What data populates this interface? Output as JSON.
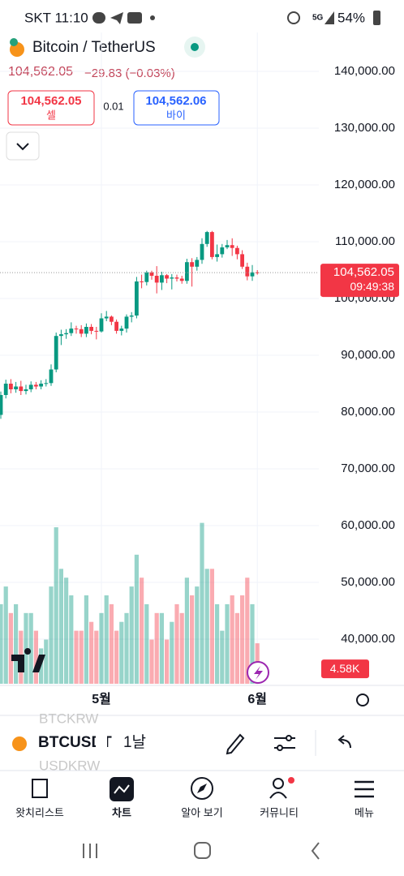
{
  "status_bar": {
    "carrier_time": "SKT 11:10",
    "network": "5G",
    "battery": "54%"
  },
  "header": {
    "symbol_name": "Bitcoin / TetherUS",
    "price": "104,562.05",
    "change": "−29.83 (−0.03%)",
    "sell": {
      "price": "104,562.05",
      "label": "셀"
    },
    "spread": "0.01",
    "buy": {
      "price": "104,562.06",
      "label": "바이"
    }
  },
  "chart_data": {
    "type": "candlestick",
    "categories": [
      null,
      null,
      null,
      null,
      null,
      null,
      null,
      null,
      null,
      null,
      null,
      null,
      null,
      null,
      null,
      null,
      null,
      null,
      null,
      null,
      "5월",
      null,
      null,
      null,
      null,
      null,
      null,
      null,
      null,
      null,
      null,
      null,
      null,
      null,
      null,
      null,
      null,
      null,
      null,
      null,
      null,
      null,
      null,
      null,
      null,
      null,
      null,
      null,
      null,
      null,
      null,
      "6월"
    ],
    "candles": [
      [
        79500,
        83600,
        78800,
        83000
      ],
      [
        83000,
        85700,
        82400,
        85000
      ],
      [
        85000,
        85800,
        83300,
        84000
      ],
      [
        84000,
        85300,
        83400,
        84500
      ],
      [
        84500,
        85500,
        83000,
        83700
      ],
      [
        83700,
        84800,
        83100,
        84000
      ],
      [
        84000,
        85400,
        83500,
        84800
      ],
      [
        84800,
        85300,
        84000,
        84500
      ],
      [
        84500,
        85600,
        84000,
        85000
      ],
      [
        85000,
        85800,
        84500,
        85100
      ],
      [
        85100,
        88400,
        84600,
        87500
      ],
      [
        87500,
        94000,
        87000,
        93400
      ],
      [
        93400,
        94500,
        91800,
        93700
      ],
      [
        93700,
        94600,
        92900,
        93900
      ],
      [
        93900,
        95800,
        93400,
        94700
      ],
      [
        94700,
        95200,
        93800,
        94600
      ],
      [
        94600,
        95300,
        93200,
        93800
      ],
      [
        93800,
        95600,
        93200,
        95000
      ],
      [
        95000,
        95500,
        93700,
        94300
      ],
      [
        94300,
        95000,
        92800,
        94200
      ],
      [
        94200,
        97400,
        94000,
        96500
      ],
      [
        96500,
        97800,
        96000,
        96800
      ],
      [
        96800,
        97000,
        95300,
        95900
      ],
      [
        95900,
        96300,
        93800,
        94300
      ],
      [
        94300,
        95200,
        93500,
        94700
      ],
      [
        94700,
        97200,
        94000,
        96800
      ],
      [
        96800,
        97600,
        95800,
        97000
      ],
      [
        97000,
        103800,
        96500,
        103000
      ],
      [
        103000,
        104200,
        101800,
        102900
      ],
      [
        102900,
        104900,
        102300,
        104600
      ],
      [
        104600,
        104900,
        103300,
        104000
      ],
      [
        104000,
        105700,
        100900,
        102800
      ],
      [
        102800,
        104700,
        101500,
        104100
      ],
      [
        104100,
        104300,
        102700,
        103500
      ],
      [
        103500,
        104300,
        101600,
        103700
      ],
      [
        103700,
        104200,
        103000,
        103500
      ],
      [
        103500,
        104000,
        102600,
        103100
      ],
      [
        103100,
        107000,
        102600,
        106400
      ],
      [
        106400,
        107100,
        102100,
        105600
      ],
      [
        105600,
        107300,
        104900,
        106800
      ],
      [
        106800,
        110600,
        106100,
        109600
      ],
      [
        109600,
        111900,
        109100,
        111700
      ],
      [
        111700,
        111900,
        106900,
        107300
      ],
      [
        107300,
        109500,
        106500,
        107800
      ],
      [
        107800,
        109600,
        107200,
        109000
      ],
      [
        109000,
        110300,
        108700,
        109400
      ],
      [
        109400,
        110600,
        107500,
        108900
      ],
      [
        108900,
        109300,
        106900,
        107800
      ],
      [
        107800,
        108500,
        105200,
        105600
      ],
      [
        105600,
        106300,
        103200,
        103900
      ],
      [
        103900,
        105900,
        103100,
        104600
      ],
      [
        104600,
        105000,
        104200,
        104562.05
      ]
    ],
    "volumes": [
      9,
      11,
      8,
      9,
      6,
      8,
      8,
      6,
      4,
      5,
      11,
      17.7,
      13,
      12,
      10,
      6,
      6,
      10,
      7,
      6,
      8,
      10,
      9,
      6,
      7,
      8,
      11,
      14.6,
      12,
      9,
      5,
      8,
      8,
      5,
      7,
      9,
      8,
      12,
      10,
      11,
      18.2,
      13,
      13,
      9,
      6,
      9,
      10,
      8,
      10,
      12,
      9,
      4.58
    ],
    "vlim": [
      0,
      20
    ],
    "ylim": [
      30000,
      150000
    ],
    "yticks": [
      {
        "value": 140000,
        "label": "140,000.00"
      },
      {
        "value": 130000,
        "label": "130,000.00"
      },
      {
        "value": 120000,
        "label": "120,000.00"
      },
      {
        "value": 110000,
        "label": "110,000.00"
      },
      {
        "value": 100000,
        "label": "100,000.00"
      },
      {
        "value": 90000,
        "label": "90,000.00"
      },
      {
        "value": 80000,
        "label": "80,000.00"
      },
      {
        "value": 70000,
        "label": "70,000.00"
      },
      {
        "value": 60000,
        "label": "60,000.00"
      },
      {
        "value": 50000,
        "label": "50,000.00"
      },
      {
        "value": 40000,
        "label": "40,000.00"
      }
    ],
    "grid": true,
    "up_color": "#089981",
    "down_color": "#f23645",
    "last_price": {
      "value": 104562.05,
      "label": "104,562.05",
      "countdown": "09:49:38"
    },
    "last_volume": {
      "value": 4.58,
      "label": "4.58K"
    }
  },
  "toolbar": {
    "symbol_prev": "BTCKRW",
    "symbol": "BTCUSDT",
    "symbol_next": "USDKRW",
    "interval": "1날"
  },
  "nav": [
    "왓치리스트",
    "차트",
    "알아 보기",
    "커뮤니티",
    "메뉴"
  ]
}
